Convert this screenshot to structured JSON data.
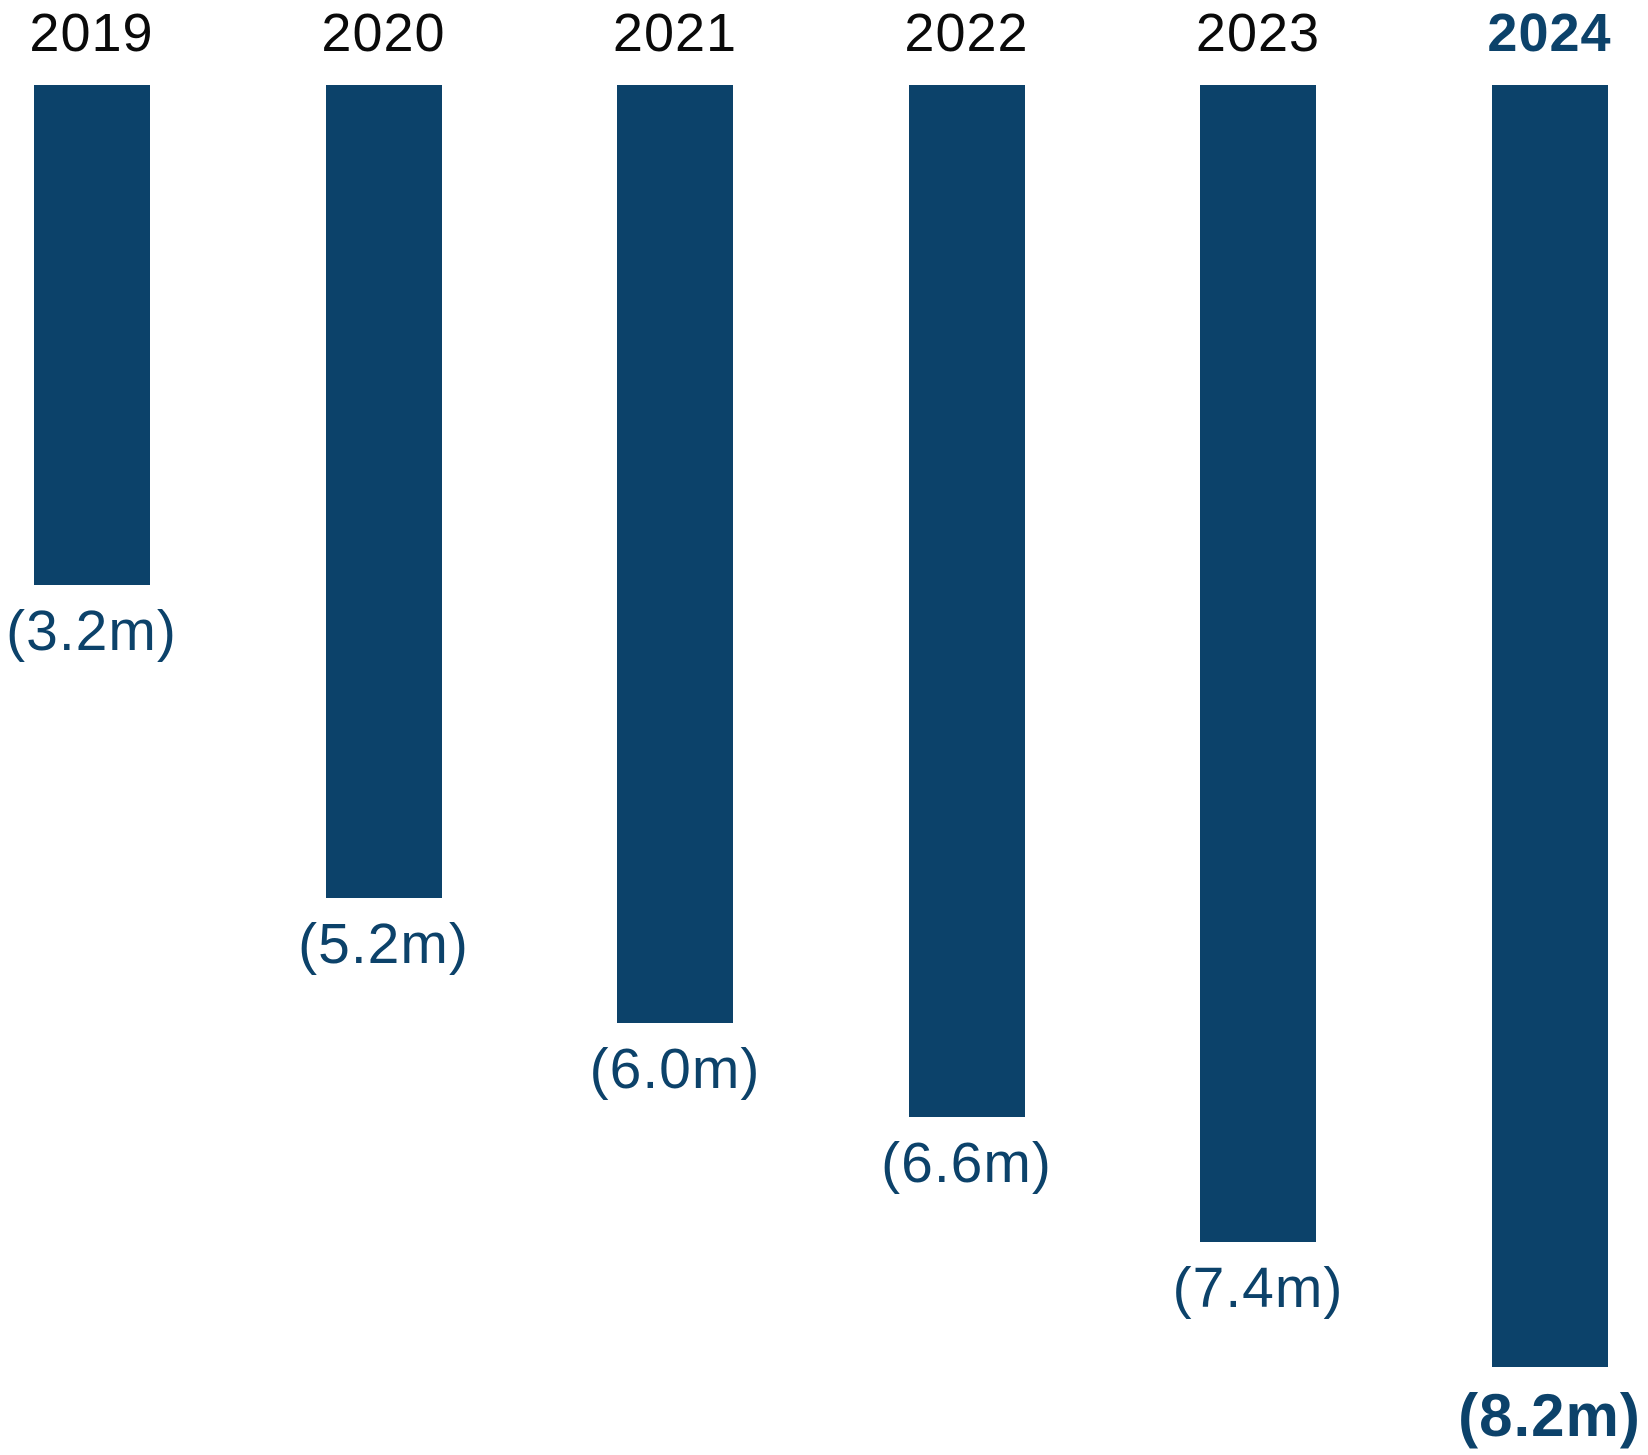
{
  "chart_data": {
    "type": "bar",
    "title": "",
    "xlabel": "",
    "ylabel": "",
    "orientation": "vertical, bars extend downward from a common baseline (negative values)",
    "categories": [
      "2019",
      "2020",
      "2021",
      "2022",
      "2023",
      "2024"
    ],
    "values": [
      -3.2,
      -5.2,
      -6.0,
      -6.6,
      -7.4,
      -8.2
    ],
    "value_labels": [
      "(3.2m)",
      "(5.2m)",
      "(6.0m)",
      "(6.6m)",
      "(7.4m)",
      "(8.2m)"
    ],
    "unit": "m",
    "negative_notation": "parentheses",
    "highlight_category": "2024",
    "legend_position": "none",
    "grid": false,
    "axes_visible": false,
    "colors": {
      "bar": "#0c426a",
      "value_label": "#0c426a",
      "year_label": "#0a0a0a",
      "highlight_year_label": "#0c426a",
      "background": "#ffffff"
    }
  }
}
